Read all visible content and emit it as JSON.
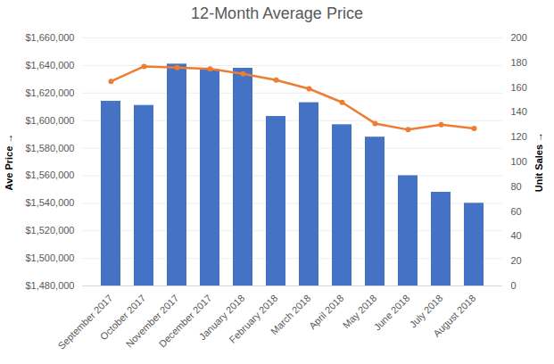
{
  "chart_data": {
    "type": "bar",
    "title": "12-Month Average Price",
    "categories": [
      "September 2017",
      "October 2017",
      "November 2017",
      "December 2017",
      "January 2018",
      "February 2018",
      "March 2018",
      "April 2018",
      "May 2018",
      "June 2018",
      "July 2018",
      "August 2018"
    ],
    "series": [
      {
        "name": "Ave Price",
        "type": "bar",
        "color": "#4472c4",
        "values": [
          1614000,
          1611000,
          1641000,
          1637000,
          1638000,
          1603000,
          1613000,
          1597000,
          1588000,
          1560000,
          1548000,
          1540000
        ]
      },
      {
        "name": "Unit Sales",
        "type": "line",
        "axis": "y2",
        "color": "#ed7d31",
        "marker": "circle",
        "line_style": "solid",
        "values": [
          165,
          177,
          176,
          175,
          171,
          166,
          159,
          148,
          131,
          126,
          130,
          127
        ]
      }
    ],
    "ylim": [
      1480000,
      1660000
    ],
    "yticks": [
      {
        "value": 1480000,
        "label": "$1,480,000"
      },
      {
        "value": 1500000,
        "label": "$1,500,000"
      },
      {
        "value": 1520000,
        "label": "$1,520,000"
      },
      {
        "value": 1540000,
        "label": "$1,540,000"
      },
      {
        "value": 1560000,
        "label": "$1,560,000"
      },
      {
        "value": 1580000,
        "label": "$1,580,000"
      },
      {
        "value": 1600000,
        "label": "$1,600,000"
      },
      {
        "value": 1620000,
        "label": "$1,620,000"
      },
      {
        "value": 1640000,
        "label": "$1,640,000"
      },
      {
        "value": 1660000,
        "label": "$1,660,000"
      }
    ],
    "y2lim": [
      0,
      200
    ],
    "y2ticks": [
      0,
      20,
      40,
      60,
      80,
      100,
      120,
      140,
      160,
      180,
      200
    ],
    "grid": true
  }
}
